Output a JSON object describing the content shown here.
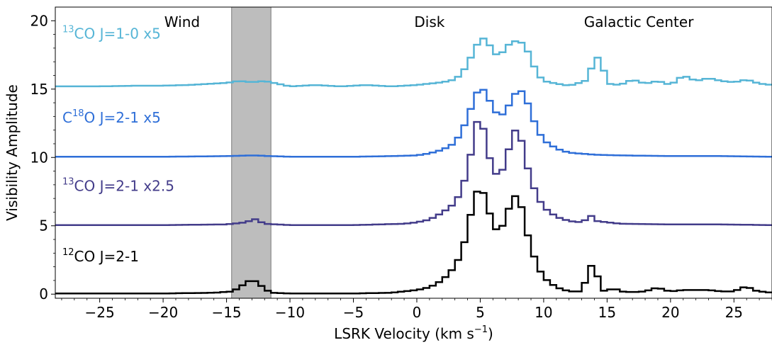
{
  "chart_data": {
    "type": "line",
    "xlabel": "LSRK Velocity (km s",
    "xlabel_sup": "−1",
    "xlabel_end": ")",
    "ylabel": "Visibility Amplitude",
    "xlim": [
      -28.5,
      28
    ],
    "ylim": [
      -0.3,
      21
    ],
    "xticks": [
      -25,
      -20,
      -15,
      -10,
      -5,
      0,
      5,
      10,
      15,
      20,
      25
    ],
    "xtick_labels": [
      "−25",
      "−20",
      "−15",
      "−10",
      "−5",
      "0",
      "5",
      "10",
      "15",
      "20",
      "25"
    ],
    "yticks": [
      0,
      5,
      10,
      15,
      20
    ],
    "ytick_labels": [
      "0",
      "5",
      "10",
      "15",
      "20"
    ],
    "grid": false,
    "shaded_region": {
      "x0": -14.6,
      "x1": -11.5,
      "color": "#bdbdbd"
    },
    "region_labels": [
      {
        "text": "Wind",
        "x": -18.5
      },
      {
        "text": "Disk",
        "x": 1.0
      },
      {
        "text": "Galactic Center",
        "x": 17.5
      }
    ],
    "series": [
      {
        "name_pre": "13",
        "name": "CO J=1-0 x5",
        "name_style": "sup-prefix",
        "color": "#56b5d6",
        "offset": 15.2,
        "points": [
          [
            -28.5,
            0
          ],
          [
            -25,
            0
          ],
          [
            -22,
            0.05
          ],
          [
            -20,
            0.05
          ],
          [
            -18,
            0.1
          ],
          [
            -16,
            0.2
          ],
          [
            -15,
            0.25
          ],
          [
            -14,
            0.4
          ],
          [
            -13,
            0.3
          ],
          [
            -12,
            0.4
          ],
          [
            -11,
            0.2
          ],
          [
            -10,
            0
          ],
          [
            -8,
            0.1
          ],
          [
            -6,
            0
          ],
          [
            -4,
            0.1
          ],
          [
            -2,
            0
          ],
          [
            0,
            0.1
          ],
          [
            1,
            0.2
          ],
          [
            2,
            0.3
          ],
          [
            3,
            0.5
          ],
          [
            3.5,
            0.9
          ],
          [
            4,
            1.6
          ],
          [
            4.5,
            2.6
          ],
          [
            5,
            3.5
          ],
          [
            5.5,
            3.5
          ],
          [
            6,
            2.5
          ],
          [
            6.5,
            2.2
          ],
          [
            7,
            2.8
          ],
          [
            7.5,
            3.3
          ],
          [
            8,
            3.3
          ],
          [
            8.5,
            3.1
          ],
          [
            9,
            2.0
          ],
          [
            9.5,
            0.9
          ],
          [
            10,
            0.4
          ],
          [
            11,
            0.2
          ],
          [
            12,
            0.05
          ],
          [
            13,
            0.3
          ],
          [
            13.5,
            0.5
          ],
          [
            14,
            2.1
          ],
          [
            14.5,
            2.1
          ],
          [
            15,
            0.2
          ],
          [
            16,
            0.1
          ],
          [
            17,
            0.5
          ],
          [
            18,
            0.2
          ],
          [
            19,
            0.4
          ],
          [
            20,
            0.1
          ],
          [
            21,
            0.8
          ],
          [
            22,
            0.4
          ],
          [
            23,
            0.6
          ],
          [
            24,
            0.4
          ],
          [
            25,
            0.3
          ],
          [
            26,
            0.5
          ],
          [
            27,
            0.2
          ],
          [
            28,
            0.1
          ]
        ]
      },
      {
        "name_pre": "C",
        "name_sup": "18",
        "name": "O J=2-1 x5",
        "name_style": "sup-middle",
        "color": "#2f6fd8",
        "offset": 10.05,
        "points": [
          [
            -28.5,
            0
          ],
          [
            -20,
            0
          ],
          [
            -15,
            0.05
          ],
          [
            -13,
            0.1
          ],
          [
            -10,
            0
          ],
          [
            -5,
            0
          ],
          [
            -2,
            0.05
          ],
          [
            0,
            0.1
          ],
          [
            1,
            0.25
          ],
          [
            2,
            0.5
          ],
          [
            3,
            1.0
          ],
          [
            3.5,
            1.8
          ],
          [
            4,
            2.8
          ],
          [
            4.5,
            4.2
          ],
          [
            5,
            5.2
          ],
          [
            5.5,
            4.6
          ],
          [
            6,
            3.6
          ],
          [
            6.5,
            2.9
          ],
          [
            7,
            3.3
          ],
          [
            7.5,
            4.2
          ],
          [
            8,
            5.0
          ],
          [
            8.5,
            4.6
          ],
          [
            9,
            3.2
          ],
          [
            9.5,
            2.0
          ],
          [
            10,
            1.2
          ],
          [
            11,
            0.6
          ],
          [
            12,
            0.3
          ],
          [
            14,
            0.15
          ],
          [
            16,
            0.1
          ],
          [
            20,
            0.05
          ],
          [
            24,
            0.05
          ],
          [
            28,
            0
          ]
        ]
      },
      {
        "name_pre": "13",
        "name": "CO J=2-1 x2.5",
        "name_style": "sup-prefix",
        "color": "#433c8a",
        "offset": 5.05,
        "points": [
          [
            -28.5,
            0
          ],
          [
            -20,
            0
          ],
          [
            -15,
            0.05
          ],
          [
            -13.5,
            0.2
          ],
          [
            -12.8,
            0.45
          ],
          [
            -12,
            0.1
          ],
          [
            -10,
            0
          ],
          [
            -5,
            0
          ],
          [
            -1,
            0.1
          ],
          [
            0,
            0.2
          ],
          [
            1,
            0.4
          ],
          [
            2,
            0.9
          ],
          [
            3,
            1.6
          ],
          [
            3.5,
            2.5
          ],
          [
            4,
            4.0
          ],
          [
            4.5,
            6.3
          ],
          [
            4.8,
            7.8
          ],
          [
            5.2,
            7.3
          ],
          [
            5.5,
            5.8
          ],
          [
            6,
            4.0
          ],
          [
            6.5,
            3.5
          ],
          [
            7,
            4.6
          ],
          [
            7.5,
            6.5
          ],
          [
            7.8,
            7.0
          ],
          [
            8.2,
            6.4
          ],
          [
            8.5,
            5.0
          ],
          [
            9,
            3.3
          ],
          [
            9.5,
            2.1
          ],
          [
            10,
            1.3
          ],
          [
            11,
            0.6
          ],
          [
            12,
            0.3
          ],
          [
            13,
            0.2
          ],
          [
            13.8,
            0.7
          ],
          [
            14.2,
            0.3
          ],
          [
            16,
            0.1
          ],
          [
            20,
            0.05
          ],
          [
            24,
            0.05
          ],
          [
            28,
            0
          ]
        ]
      },
      {
        "name_pre": "12",
        "name": "CO J=2-1",
        "name_style": "sup-prefix",
        "color": "#000000",
        "offset": 0.0,
        "points": [
          [
            -28.5,
            0.05
          ],
          [
            -20,
            0.05
          ],
          [
            -16,
            0.1
          ],
          [
            -14.5,
            0.2
          ],
          [
            -14,
            0.5
          ],
          [
            -13.5,
            0.8
          ],
          [
            -13,
            1.1
          ],
          [
            -12.5,
            0.8
          ],
          [
            -12,
            0.4
          ],
          [
            -11.5,
            0.1
          ],
          [
            -10,
            0.05
          ],
          [
            -5,
            0.05
          ],
          [
            -2,
            0.1
          ],
          [
            0,
            0.3
          ],
          [
            1,
            0.5
          ],
          [
            2,
            1.0
          ],
          [
            3,
            2.0
          ],
          [
            3.5,
            3.0
          ],
          [
            4,
            4.6
          ],
          [
            4.5,
            7.0
          ],
          [
            5,
            8.0
          ],
          [
            5.5,
            6.8
          ],
          [
            6,
            5.0
          ],
          [
            6.5,
            4.5
          ],
          [
            7,
            5.5
          ],
          [
            7.5,
            7.0
          ],
          [
            7.8,
            7.2
          ],
          [
            8.2,
            6.6
          ],
          [
            8.5,
            5.2
          ],
          [
            9,
            3.4
          ],
          [
            9.5,
            2.1
          ],
          [
            10,
            1.2
          ],
          [
            11,
            0.5
          ],
          [
            12,
            0.2
          ],
          [
            13,
            0.2
          ],
          [
            13.8,
            2.2
          ],
          [
            14.2,
            1.5
          ],
          [
            14.5,
            0.3
          ],
          [
            15,
            0.2
          ],
          [
            15.5,
            0.5
          ],
          [
            16,
            0.2
          ],
          [
            17,
            0.15
          ],
          [
            18,
            0.2
          ],
          [
            19,
            0.5
          ],
          [
            19.5,
            0.3
          ],
          [
            20,
            0.2
          ],
          [
            21,
            0.3
          ],
          [
            22,
            0.3
          ],
          [
            23,
            0.3
          ],
          [
            24,
            0.2
          ],
          [
            25,
            0.2
          ],
          [
            26,
            0.6
          ],
          [
            26.5,
            0.3
          ],
          [
            27,
            0.2
          ],
          [
            28,
            0.1
          ]
        ]
      }
    ]
  }
}
